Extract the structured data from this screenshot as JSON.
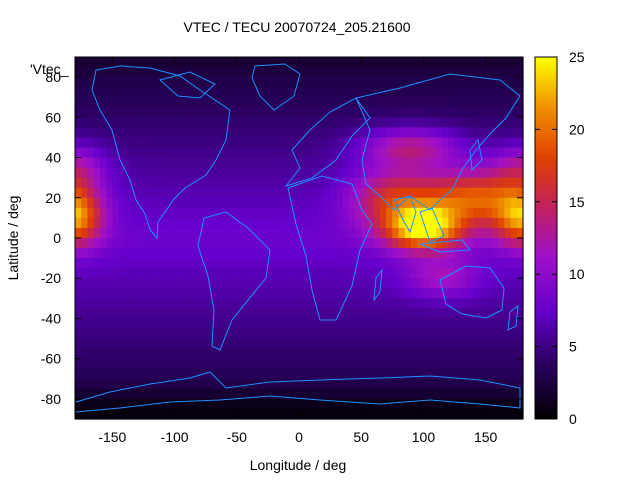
{
  "chart_data": {
    "type": "heatmap",
    "title": "VTEC / TECU 20070724_205.21600",
    "xlabel": "Longitude / deg",
    "ylabel": "Latitude / deg",
    "series_label": "'Vtec_",
    "xlim": [
      -180,
      180
    ],
    "ylim": [
      -90,
      90
    ],
    "xticks": [
      -150,
      -100,
      -50,
      0,
      50,
      100,
      150
    ],
    "yticks": [
      -80,
      -60,
      -40,
      -20,
      0,
      20,
      40,
      60,
      80
    ],
    "colorbar": {
      "min": 0,
      "max": 25,
      "ticks": [
        0,
        5,
        10,
        15,
        20,
        25
      ]
    },
    "grid": false,
    "overlay": "coastlines",
    "overlay_color": "#1e90ff",
    "hotspots_tecu": [
      {
        "lon": 100,
        "lat": 5,
        "value": 25,
        "spread_lon": 30,
        "spread_lat": 11
      },
      {
        "lon": 140,
        "lat": 20,
        "value": 20,
        "spread_lon": 42,
        "spread_lat": 14
      },
      {
        "lon": 75,
        "lat": 20,
        "value": 17,
        "spread_lon": 35,
        "spread_lat": 15
      },
      {
        "lon": 90,
        "lat": 45,
        "value": 16,
        "spread_lon": 40,
        "spread_lat": 10
      },
      {
        "lon": -180,
        "lat": 10,
        "value": 21,
        "spread_lon": 22,
        "spread_lat": 14
      },
      {
        "lon": -180,
        "lat": 35,
        "value": 14,
        "spread_lon": 25,
        "spread_lat": 12
      },
      {
        "lon": 115,
        "lat": -20,
        "value": 13,
        "spread_lon": 30,
        "spread_lat": 10
      }
    ],
    "background_tecu": 8,
    "polar_tecu": 2
  }
}
